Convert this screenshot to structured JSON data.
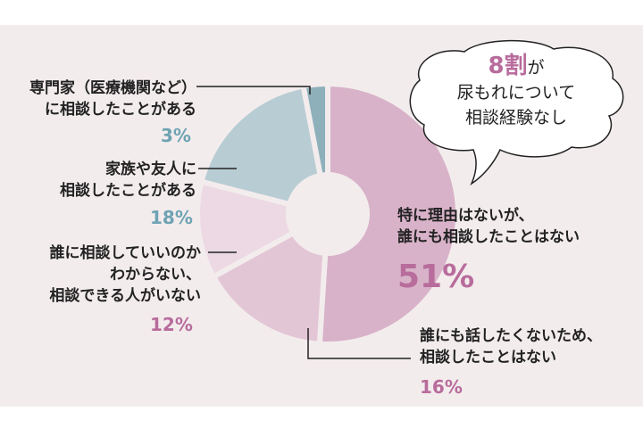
{
  "chart_data": {
    "type": "pie",
    "style": "donut",
    "title": "",
    "slices": [
      {
        "label": "特に理由はないが、誰にも相談したことはない",
        "lines": [
          "特に理由はないが、",
          "誰にも相談したことはない"
        ],
        "value": 51,
        "value_label": "51%",
        "color": "#d8b2c8"
      },
      {
        "label": "誰にも話したくないため、相談したことはない",
        "lines": [
          "誰にも話したくないため、",
          "相談したことはない"
        ],
        "value": 16,
        "value_label": "16%",
        "color": "#e3c6d6"
      },
      {
        "label": "誰に相談していいのかわからない、相談できる人がいない",
        "lines": [
          "誰に相談していいのか",
          "わからない、",
          "相談できる人がいない"
        ],
        "value": 12,
        "value_label": "12%",
        "color": "#ecd9e3"
      },
      {
        "label": "家族や友人に相談したことがある",
        "lines": [
          "家族や友人に",
          "相談したことがある"
        ],
        "value": 18,
        "value_label": "18%",
        "color": "#b8ccd4"
      },
      {
        "label": "専門家（医療機関など）に相談したことがある",
        "lines": [
          "専門家（医療機関など）",
          "に相談したことがある"
        ],
        "value": 3,
        "value_label": "3%",
        "color": "#8eb0bb"
      }
    ],
    "annotation": {
      "highlight": "8割",
      "line1_suffix": "が",
      "line2": "尿もれについて",
      "line3": "相談経験なし"
    }
  }
}
